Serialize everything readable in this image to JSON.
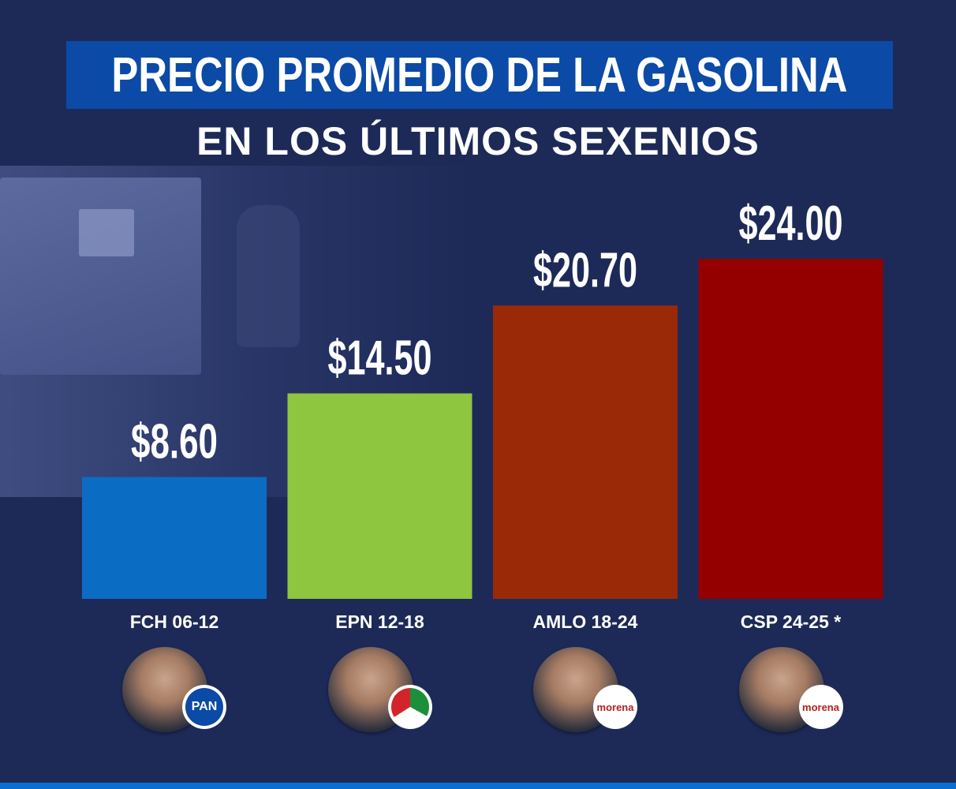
{
  "title": "PRECIO PROMEDIO DE LA GASOLINA",
  "subtitle": "EN LOS ÚLTIMOS SEXENIOS",
  "chart_data": {
    "type": "bar",
    "title": "PRECIO PROMEDIO DE LA GASOLINA",
    "subtitle": "EN LOS ÚLTIMOS SEXENIOS",
    "categories": [
      "FCH 06-12",
      "EPN 12-18",
      "AMLO 18-24",
      "CSP 24-25 *"
    ],
    "values": [
      8.6,
      14.5,
      20.7,
      24.0
    ],
    "value_labels": [
      "$8.60",
      "$14.50",
      "$20.70",
      "$24.00"
    ],
    "colors": [
      "#0b6cc4",
      "#8ec63f",
      "#9a2a07",
      "#940000"
    ],
    "xlabel": "",
    "ylabel": "",
    "ylim": [
      0,
      24
    ],
    "grid": false,
    "legend": "none"
  },
  "parties": [
    {
      "name": "PAN",
      "icon": "pan-logo-icon"
    },
    {
      "name": "PRI",
      "icon": "pri-logo-icon"
    },
    {
      "name": "morena",
      "icon": "morena-logo-icon"
    },
    {
      "name": "morena",
      "icon": "morena-logo-icon"
    }
  ],
  "icons": {
    "person_photo": "person-photo-icon",
    "gas_pump": "gas-pump-icon"
  }
}
